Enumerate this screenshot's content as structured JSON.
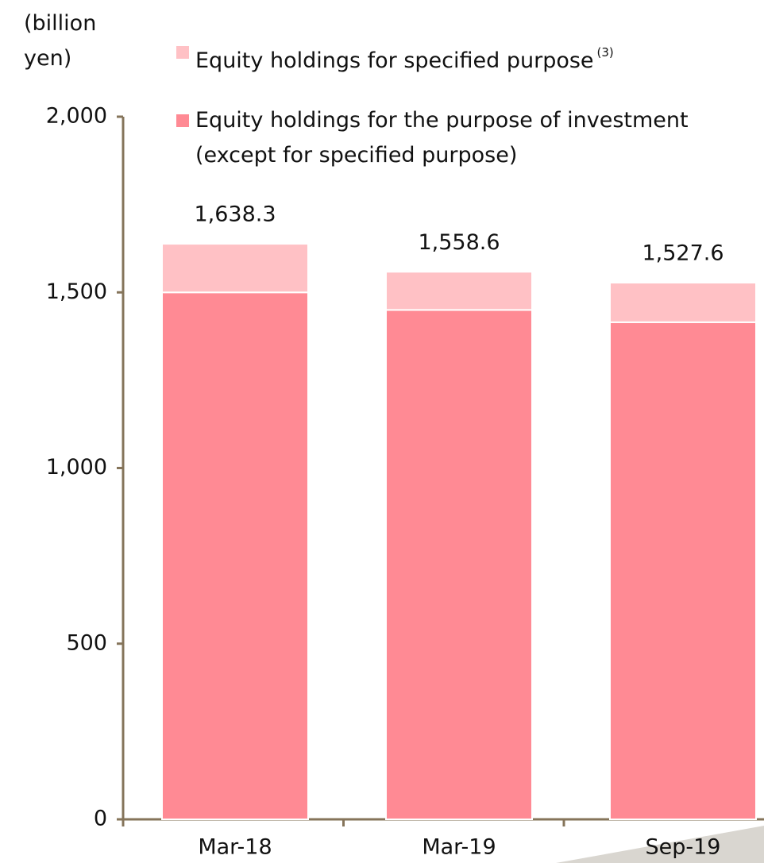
{
  "chart_data": {
    "type": "stacked_bar",
    "ylabel": "(billion yen)",
    "categories": [
      "Mar-18",
      "Mar-19",
      "Sep-19"
    ],
    "series": [
      {
        "name": "Equity holdings for the purpose of investment (except for specified purpose)",
        "color": "#ff8a94",
        "values": [
          1500,
          1450,
          1415
        ]
      },
      {
        "name": "Equity holdings for specified purpose",
        "name_note": "(3)",
        "color": "#ffc1c5",
        "values": [
          138.3,
          108.6,
          112.6
        ]
      }
    ],
    "totals": [
      1638.3,
      1558.6,
      1527.6
    ],
    "total_labels": [
      "1,638.3",
      "1,558.6",
      "1,527.6"
    ],
    "ylim": [
      0,
      2000
    ],
    "yticks": [
      0,
      500,
      {
        "value": 1000,
        "label": "1,000"
      },
      {
        "value": 1500,
        "label": "1,500"
      },
      {
        "value": 2000,
        "label": "2,000"
      }
    ],
    "legend": "top"
  }
}
